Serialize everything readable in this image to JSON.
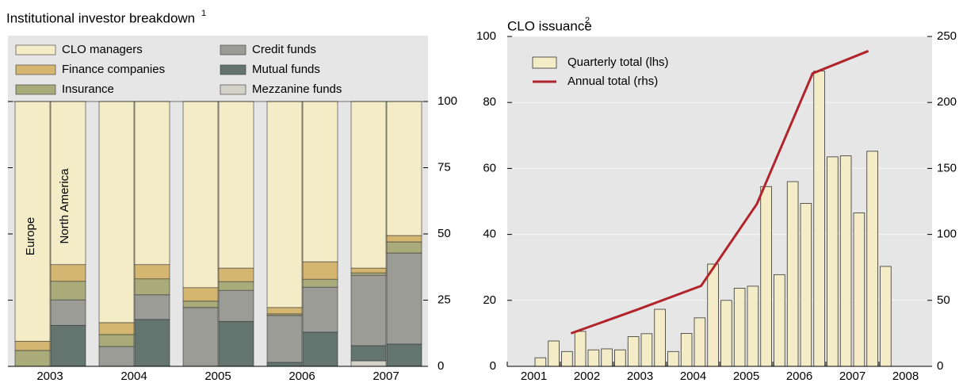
{
  "chart_data": [
    {
      "type": "stacked_bar",
      "title": "Institutional investor breakdown",
      "title_note": "1",
      "groups": [
        "2003",
        "2004",
        "2005",
        "2006",
        "2007"
      ],
      "bars": [
        "Europe",
        "North America"
      ],
      "series": [
        {
          "name": "Mezzanine funds",
          "color": "#d3d2c9",
          "values": [
            0,
            0,
            0,
            0,
            0,
            0,
            0,
            0,
            2.1,
            0
          ]
        },
        {
          "name": "Mutual funds",
          "color": "#64756f",
          "values": [
            0,
            15.5,
            0,
            17.7,
            0,
            17,
            1.5,
            12.9,
            5.7,
            8.4
          ]
        },
        {
          "name": "Credit funds",
          "color": "#9c9c97",
          "values": [
            0,
            9.6,
            7.5,
            9.3,
            22.2,
            11.7,
            17.7,
            17,
            26.6,
            34.4
          ]
        },
        {
          "name": "Insurance",
          "color": "#a9ab7b",
          "values": [
            6,
            7,
            4.5,
            6,
            2.4,
            3.3,
            0.6,
            3,
            0.9,
            4.2
          ]
        },
        {
          "name": "Finance companies",
          "color": "#d5b671",
          "values": [
            3.5,
            6.3,
            4.5,
            5.4,
            5.1,
            5.1,
            2.4,
            6.6,
            1.8,
            2.4
          ]
        },
        {
          "name": "CLO managers",
          "color": "#f4ecc6",
          "values": [
            90.5,
            61.6,
            83.5,
            61.6,
            70.3,
            62.9,
            77.8,
            60.5,
            62.9,
            50.6
          ]
        }
      ],
      "ylim": [
        0,
        100
      ],
      "yticks": [
        0,
        25,
        50,
        75,
        100
      ]
    },
    {
      "type": "bar_line",
      "title": "CLO issuance",
      "title_note": "2",
      "xlim": [
        2001,
        2009
      ],
      "xticks": [
        2001,
        2002,
        2003,
        2004,
        2005,
        2006,
        2007,
        2008
      ],
      "ylim": [
        0,
        100
      ],
      "yticks": [
        0,
        20,
        40,
        60,
        80,
        100
      ],
      "y2lim": [
        0,
        250
      ],
      "y2ticks": [
        0,
        50,
        100,
        150,
        200,
        250
      ],
      "grid": true,
      "series": [
        {
          "name": "Quarterly total (lhs)",
          "type": "bar",
          "color": "#f4ecc6",
          "x": [
            2001.5,
            2001.75,
            2002,
            2002.25,
            2002.5,
            2002.75,
            2003,
            2003.25,
            2003.5,
            2003.75,
            2004,
            2004.25,
            2004.5,
            2004.75,
            2005,
            2005.25,
            2005.5,
            2005.75,
            2006,
            2006.25,
            2006.5,
            2006.75,
            2007,
            2007.25,
            2007.5,
            2007.75,
            2008
          ],
          "values": [
            2.6,
            7.7,
            4.5,
            10.6,
            5,
            5.3,
            5,
            9,
            9.9,
            17.3,
            4.5,
            10,
            14.7,
            31,
            20,
            23.7,
            24.3,
            54.5,
            27.8,
            56,
            49.4,
            89.5,
            63.5,
            63.8,
            46.5,
            65.2,
            30.3
          ]
        },
        {
          "name": "Annual total (rhs)",
          "type": "line",
          "axis": "y2",
          "color": "#b2242c",
          "x": [
            2002.2,
            2003.45,
            2004.65,
            2005.7,
            2006.75,
            2007.8
          ],
          "values": [
            25,
            43,
            61,
            123,
            222,
            239
          ]
        }
      ]
    }
  ]
}
